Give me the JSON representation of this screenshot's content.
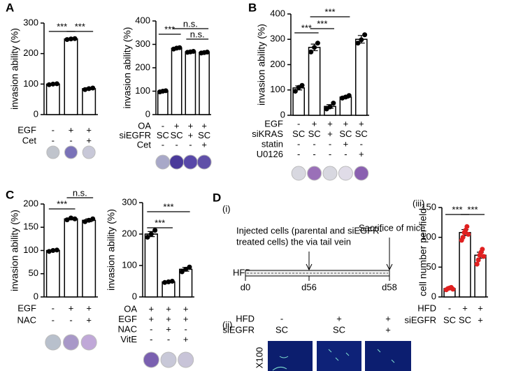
{
  "panel_labels": [
    "A",
    "B",
    "C",
    "D",
    "(i)",
    "(ii)",
    "(iii)"
  ],
  "timeline": {
    "injection": [
      "Injected cells (parental and siEGFR-",
      "treated cells) the via tail vein"
    ],
    "sacrifice": "Sacrifice of mice",
    "diet": "HFD",
    "days": [
      "d0",
      "d56",
      "d58"
    ]
  },
  "micrographs": {
    "rows": [
      {
        "name": "HFD",
        "values": [
          "-",
          "+",
          "+"
        ]
      },
      {
        "name": "siEGFR",
        "values": [
          "SC",
          "SC",
          "+"
        ]
      }
    ],
    "magnification": "X100"
  },
  "chart_data": [
    {
      "type": "bar",
      "ylabel": "invasion ability (%)",
      "ylim": [
        0,
        300
      ],
      "yticks": [
        0,
        100,
        200,
        300
      ],
      "color": "#ffffff",
      "point_color": "#000000",
      "values": [
        100,
        248,
        85
      ],
      "errors": [
        2,
        2,
        3
      ],
      "points": [
        [
          98,
          100,
          101
        ],
        [
          246,
          248,
          249
        ],
        [
          82,
          85,
          87
        ]
      ],
      "conditions": [
        {
          "name": "EGF",
          "values": [
            "-",
            "+",
            "+"
          ]
        },
        {
          "name": "Cet",
          "values": [
            "-",
            "-",
            "+"
          ]
        }
      ],
      "significance": [
        {
          "label": "***",
          "bars": [
            0,
            1
          ]
        },
        {
          "label": "***",
          "bars": [
            1,
            2
          ]
        }
      ]
    },
    {
      "type": "bar",
      "ylabel": "invasion ability (%)",
      "ylim": [
        0,
        400
      ],
      "yticks": [
        0,
        100,
        200,
        300,
        400
      ],
      "color": "#ffffff",
      "point_color": "#000000",
      "values": [
        100,
        283,
        268,
        265
      ],
      "errors": [
        3,
        3,
        2,
        2
      ],
      "points": [
        [
          97,
          100,
          102
        ],
        [
          280,
          284,
          286
        ],
        [
          266,
          268,
          270
        ],
        [
          263,
          265,
          267
        ]
      ],
      "conditions": [
        {
          "name": "OA",
          "values": [
            "-",
            "+",
            "+",
            "+"
          ]
        },
        {
          "name": "siEGFR",
          "values": [
            "SC",
            "SC",
            "+",
            "SC"
          ]
        },
        {
          "name": "Cet",
          "values": [
            "-",
            "-",
            "-",
            "+"
          ]
        }
      ],
      "significance": [
        {
          "label": "***",
          "bars": [
            0,
            1
          ]
        },
        {
          "label": "n.s.",
          "bars": [
            1,
            3
          ]
        },
        {
          "label": "n.s.",
          "bars": [
            2,
            3
          ]
        }
      ]
    },
    {
      "type": "bar",
      "ylabel": "invasion ability (%)",
      "ylim": [
        0,
        400
      ],
      "yticks": [
        0,
        100,
        200,
        300,
        400
      ],
      "color": "#ffffff",
      "point_color": "#000000",
      "values": [
        108,
        268,
        35,
        72,
        300
      ],
      "errors": [
        8,
        13,
        7,
        4,
        15
      ],
      "points": [
        [
          95,
          110,
          118
        ],
        [
          250,
          268,
          285
        ],
        [
          25,
          33,
          48
        ],
        [
          68,
          72,
          78
        ],
        [
          285,
          298,
          318
        ]
      ],
      "conditions": [
        {
          "name": "EGF",
          "values": [
            "-",
            "+",
            "+",
            "+",
            "+"
          ]
        },
        {
          "name": "siKRAS",
          "values": [
            "SC",
            "SC",
            "+",
            "SC",
            "SC"
          ]
        },
        {
          "name": "statin",
          "values": [
            "-",
            "-",
            "-",
            "+",
            "-"
          ]
        },
        {
          "name": "U0126",
          "values": [
            "-",
            "-",
            "-",
            "-",
            "+"
          ]
        }
      ],
      "significance": [
        {
          "label": "***",
          "bars": [
            0,
            1
          ]
        },
        {
          "label": "***",
          "bars": [
            1,
            2
          ]
        },
        {
          "label": "***",
          "bars": [
            1,
            3
          ]
        }
      ]
    },
    {
      "type": "bar",
      "ylabel": "invasion ability (%)",
      "ylim": [
        0,
        200
      ],
      "yticks": [
        0,
        50,
        100,
        150,
        200
      ],
      "color": "#ffffff",
      "point_color": "#000000",
      "values": [
        100,
        168,
        165
      ],
      "errors": [
        1,
        2,
        3
      ],
      "points": [
        [
          98,
          100,
          101
        ],
        [
          166,
          170,
          168
        ],
        [
          162,
          165,
          168
        ]
      ],
      "conditions": [
        {
          "name": "EGF",
          "values": [
            "-",
            "+",
            "+"
          ]
        },
        {
          "name": "NAC",
          "values": [
            "-",
            "-",
            "+"
          ]
        }
      ],
      "significance": [
        {
          "label": "***",
          "bars": [
            0,
            1
          ]
        },
        {
          "label": "n.s.",
          "bars": [
            1,
            2
          ]
        }
      ]
    },
    {
      "type": "bar",
      "ylabel": "invasion ability (%)",
      "ylim": [
        0,
        300
      ],
      "yticks": [
        0,
        100,
        200,
        300
      ],
      "color": "#ffffff",
      "point_color": "#000000",
      "values": [
        200,
        48,
        88
      ],
      "errors": [
        8,
        2,
        6
      ],
      "points": [
        [
          190,
          200,
          212
        ],
        [
          46,
          48,
          50
        ],
        [
          80,
          88,
          95
        ]
      ],
      "conditions": [
        {
          "name": "OA",
          "values": [
            "+",
            "+",
            "+"
          ]
        },
        {
          "name": "EGF",
          "values": [
            "+",
            "+",
            "+"
          ]
        },
        {
          "name": "NAC",
          "values": [
            "-",
            "+",
            "-"
          ]
        },
        {
          "name": "VitE",
          "values": [
            "-",
            "-",
            "+"
          ]
        }
      ],
      "significance": [
        {
          "label": "***",
          "bars": [
            0,
            1
          ]
        },
        {
          "label": "***",
          "bars": [
            0,
            2
          ]
        }
      ]
    },
    {
      "type": "bar",
      "ylabel": "cell number per field",
      "ylim": [
        0,
        150
      ],
      "yticks": [
        0,
        50,
        100,
        150
      ],
      "color": "#ffffff",
      "point_color": "#e02020",
      "values": [
        14,
        108,
        70
      ],
      "errors": [
        2,
        5,
        5
      ],
      "points": [
        [
          12,
          14,
          15,
          16,
          13
        ],
        [
          95,
          100,
          108,
          112,
          118,
          105
        ],
        [
          55,
          62,
          70,
          75,
          80,
          68
        ]
      ],
      "conditions": [
        {
          "name": "HFD",
          "values": [
            "-",
            "+",
            "+"
          ]
        },
        {
          "name": "siEGFR",
          "values": [
            "SC",
            "SC",
            "+"
          ]
        }
      ],
      "significance": [
        {
          "label": "***",
          "bars": [
            0,
            1
          ]
        },
        {
          "label": "***",
          "bars": [
            1,
            2
          ]
        }
      ]
    }
  ]
}
